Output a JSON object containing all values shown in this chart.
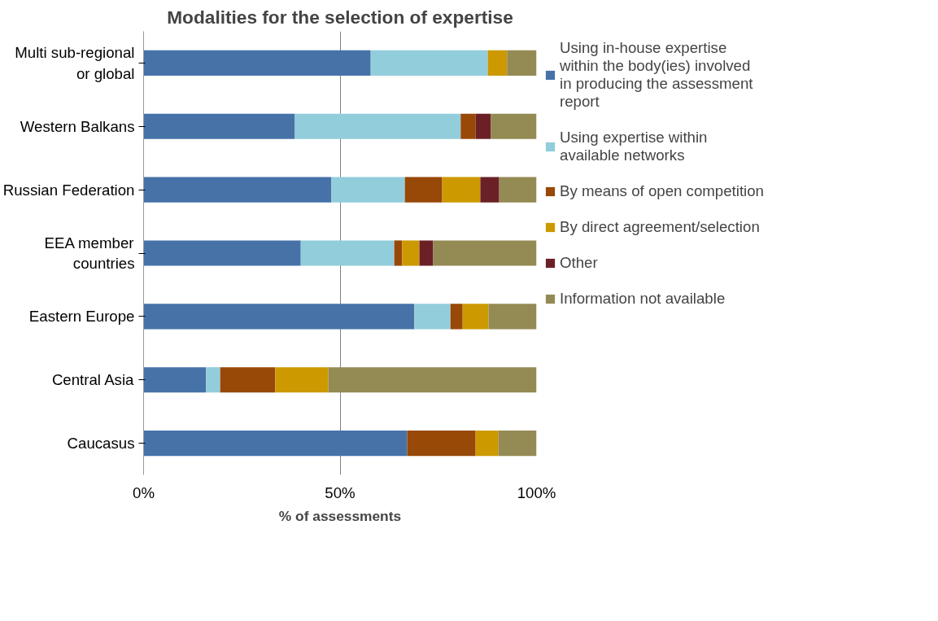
{
  "chart_data": {
    "type": "bar",
    "orientation": "horizontal",
    "stacked": true,
    "title": "Modalities for the selection of expertise",
    "xlabel": "% of assessments",
    "categories": [
      "Multi sub-regional or global",
      "Western Balkans",
      "Russian Federation",
      "EEA member countries",
      "Eastern Europe",
      "Central Asia",
      "Caucasus"
    ],
    "series": [
      {
        "name": "Using in-house expertise within the body(ies) involved in producing the assessment report",
        "color": "#4672a8",
        "values": [
          57.8,
          38.5,
          47.8,
          40.0,
          68.9,
          15.9,
          67.1
        ]
      },
      {
        "name": "Using expertise within available networks",
        "color": "#92cddc",
        "values": [
          29.8,
          42.2,
          18.7,
          23.8,
          9.2,
          3.6,
          0
        ]
      },
      {
        "name": "By means of open competition",
        "color": "#984807",
        "values": [
          0,
          3.8,
          9.5,
          2.0,
          3.1,
          14.0,
          17.4
        ]
      },
      {
        "name": "By direct agreement/selection",
        "color": "#cc9900",
        "values": [
          4.9,
          0,
          9.7,
          4.4,
          6.6,
          13.5,
          5.8
        ]
      },
      {
        "name": "Other",
        "color": "#6b2026",
        "values": [
          0,
          3.9,
          4.8,
          3.5,
          0,
          0,
          0
        ]
      },
      {
        "name": "Information not available",
        "color": "#948a54",
        "values": [
          7.5,
          11.6,
          9.5,
          26.3,
          12.2,
          53.0,
          9.7
        ]
      }
    ],
    "xlim": [
      0,
      100
    ],
    "xticks": [
      {
        "value": 0,
        "label": "0%"
      },
      {
        "value": 50,
        "label": "50%"
      },
      {
        "value": 100,
        "label": "100%"
      }
    ],
    "grid": "x",
    "legend": "right"
  }
}
